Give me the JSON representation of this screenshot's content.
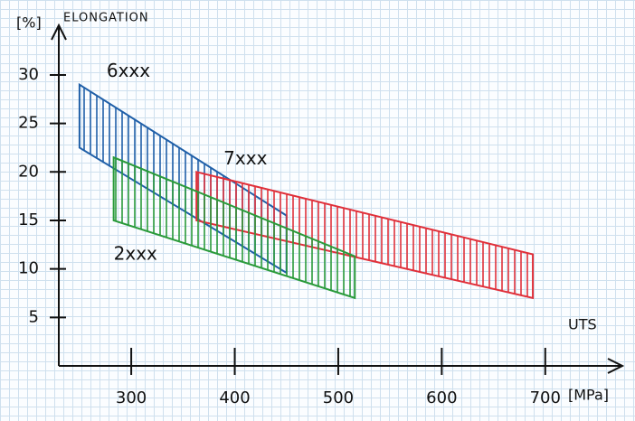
{
  "chart_data": {
    "type": "range-area",
    "y_unit": "[%]",
    "y_label": "ELONGATION",
    "x_label": "UTS",
    "x_unit": "[MPa]",
    "xlim": [
      230,
      750
    ],
    "xticks": [
      300,
      400,
      500,
      600,
      700
    ],
    "ylim": [
      0,
      34
    ],
    "yticks": [
      5,
      10,
      15,
      20,
      25,
      30
    ],
    "series": [
      {
        "name": "6xxx",
        "color": "#1f5fa8",
        "x": [
          250,
          450
        ],
        "upper": [
          29,
          15.5
        ],
        "lower": [
          22.5,
          9.6
        ]
      },
      {
        "name": "7xxx",
        "color": "#e0303a",
        "x": [
          363,
          688
        ],
        "upper": [
          20,
          11.5
        ],
        "lower": [
          15,
          7
        ]
      },
      {
        "name": "2xxx",
        "color": "#2a9a3a",
        "x": [
          283,
          516
        ],
        "upper": [
          21.5,
          11.3
        ],
        "lower": [
          15,
          7
        ]
      }
    ]
  }
}
